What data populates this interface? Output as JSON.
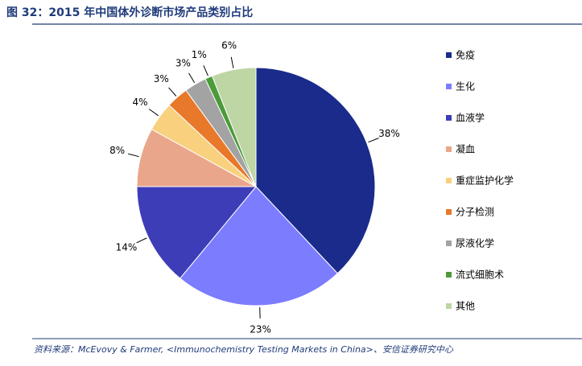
{
  "chart_data": {
    "type": "pie",
    "title": "图 32：2015 年中国体外诊断市场产品类别占比",
    "source": "资料来源：McEvovy & Farmer, <Immunochemistry Testing Markets in China>、安信证券研究中心",
    "categories": [
      "免疫",
      "生化",
      "血液学",
      "凝血",
      "重症监护化学",
      "分子检测",
      "尿液化学",
      "流式细胞术",
      "其他"
    ],
    "values": [
      38,
      23,
      14,
      8,
      4,
      3,
      3,
      1,
      6
    ],
    "value_labels": [
      "38%",
      "23%",
      "14%",
      "8%",
      "4%",
      "3%",
      "3%",
      "1%",
      "6%"
    ],
    "colors": [
      "#1a2b8c",
      "#7c7cff",
      "#3d3db8",
      "#eaa68a",
      "#f8d07e",
      "#e8782a",
      "#a3a3a3",
      "#4c9a3a",
      "#bdd6a3"
    ]
  }
}
